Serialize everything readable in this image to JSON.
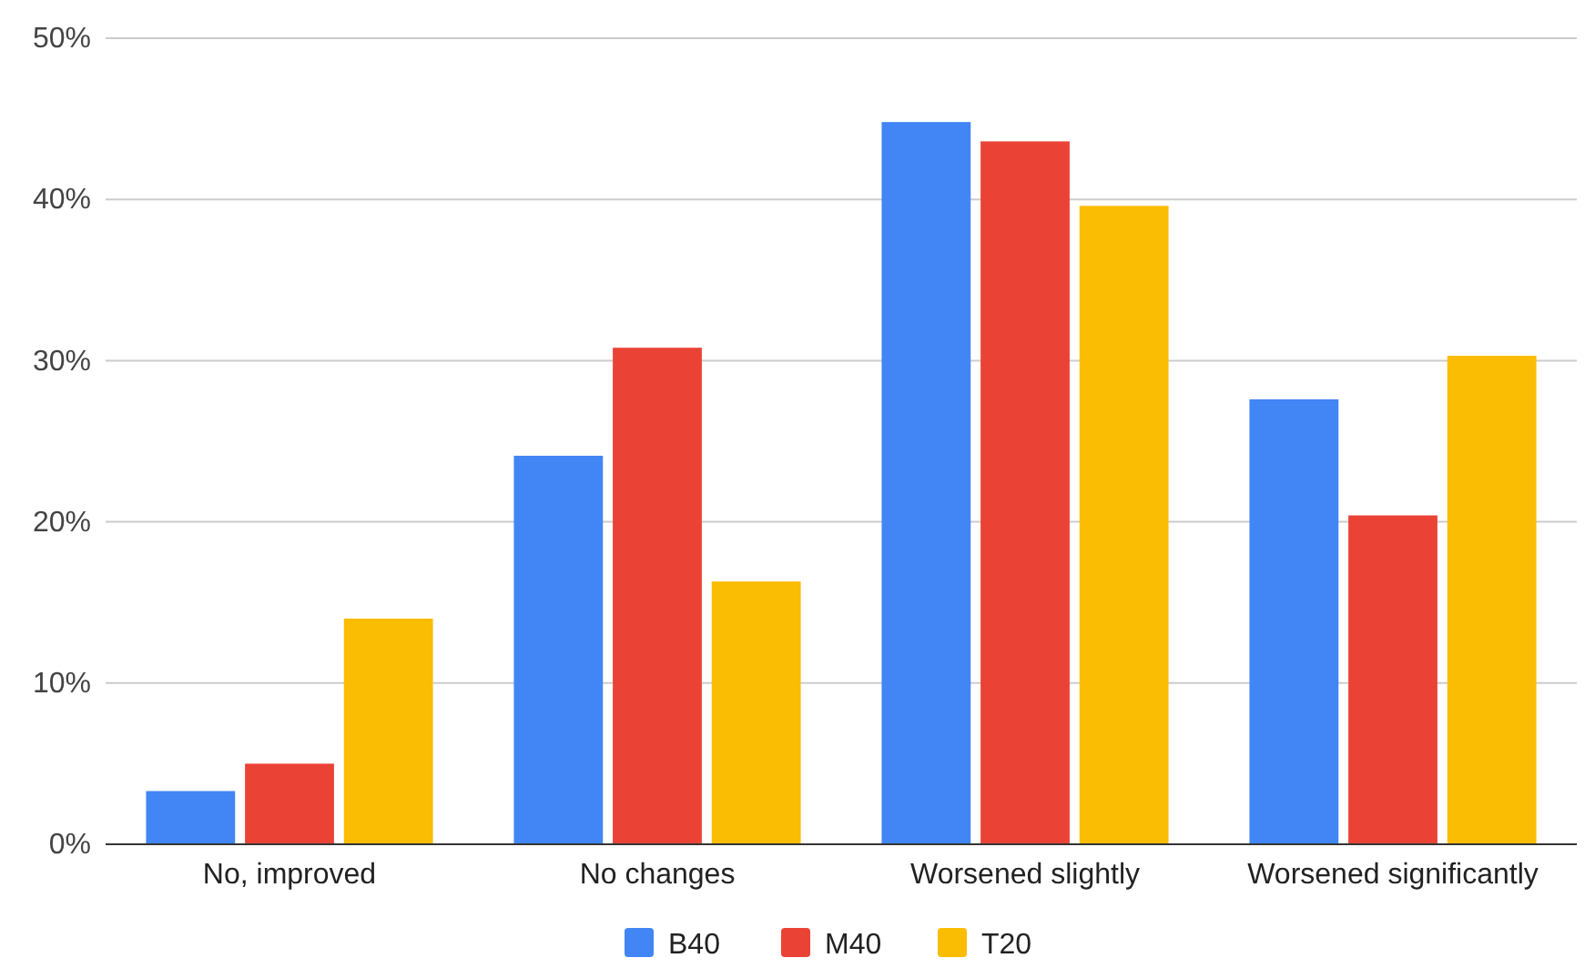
{
  "chart_data": {
    "type": "bar",
    "categories": [
      "No, improved",
      "No changes",
      "Worsened slightly",
      "Worsened significantly"
    ],
    "series": [
      {
        "name": "B40",
        "color": "#4285f4",
        "values": [
          3.3,
          24.1,
          44.8,
          27.6
        ]
      },
      {
        "name": "M40",
        "color": "#ea4335",
        "values": [
          5.0,
          30.8,
          43.6,
          20.4
        ]
      },
      {
        "name": "T20",
        "color": "#fbbc04",
        "values": [
          14.0,
          16.3,
          39.6,
          30.3
        ]
      }
    ],
    "ylim": [
      0,
      50
    ],
    "yticks": [
      {
        "value": 0,
        "label": "0%"
      },
      {
        "value": 10,
        "label": "10%"
      },
      {
        "value": 20,
        "label": "20%"
      },
      {
        "value": 30,
        "label": "30%"
      },
      {
        "value": 40,
        "label": "40%"
      },
      {
        "value": 50,
        "label": "50%"
      }
    ],
    "grid": "y",
    "legend": "bottom"
  }
}
